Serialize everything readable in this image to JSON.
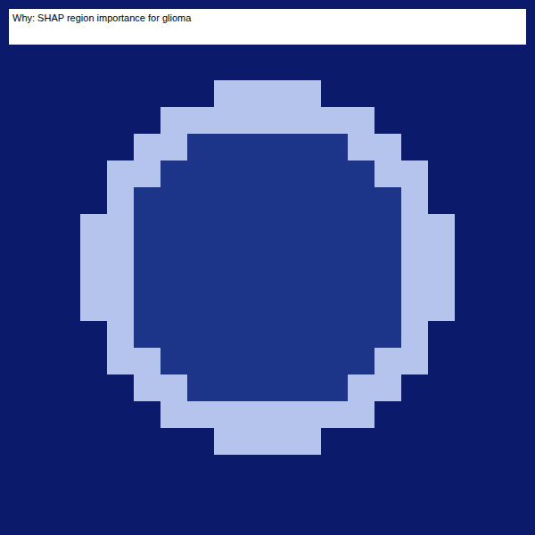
{
  "chart_data": {
    "type": "heatmap",
    "title": "Why: SHAP region importance for glioma",
    "tick_labels": false,
    "grid": false,
    "zlim": [
      0,
      10
    ],
    "cells": [
      [
        2,
        2,
        2,
        2,
        2,
        2,
        2,
        2,
        2,
        2,
        2,
        2,
        2,
        2,
        2,
        2,
        2,
        2,
        2,
        2
      ],
      [
        2,
        2,
        2,
        2,
        2,
        2,
        2,
        2,
        2,
        2,
        2,
        2,
        2,
        2,
        2,
        2,
        2,
        2,
        2,
        2
      ],
      [
        2,
        2,
        2,
        2,
        2,
        2,
        2,
        2,
        2,
        2,
        2,
        2,
        2,
        2,
        2,
        2,
        2,
        2,
        2,
        2
      ],
      [
        2,
        2,
        2,
        2,
        2,
        2,
        2,
        2,
        8,
        8,
        8,
        8,
        2,
        2,
        2,
        2,
        2,
        2,
        2,
        2
      ],
      [
        2,
        2,
        2,
        2,
        2,
        2,
        8,
        8,
        8,
        8,
        8,
        8,
        8,
        8,
        2,
        2,
        2,
        2,
        2,
        2
      ],
      [
        2,
        2,
        2,
        2,
        2,
        8,
        8,
        3,
        3,
        3,
        3,
        3,
        3,
        8,
        8,
        2,
        2,
        2,
        2,
        2
      ],
      [
        2,
        2,
        2,
        2,
        8,
        8,
        3,
        3,
        3,
        3,
        3,
        3,
        3,
        3,
        8,
        8,
        2,
        2,
        2,
        2
      ],
      [
        2,
        2,
        2,
        2,
        8,
        3,
        3,
        3,
        3,
        3,
        3,
        3,
        3,
        3,
        3,
        8,
        2,
        2,
        2,
        2
      ],
      [
        2,
        2,
        2,
        8,
        8,
        3,
        3,
        3,
        3,
        3,
        3,
        3,
        3,
        3,
        3,
        8,
        8,
        2,
        2,
        2
      ],
      [
        2,
        2,
        2,
        8,
        8,
        3,
        3,
        3,
        3,
        3,
        3,
        3,
        3,
        3,
        3,
        8,
        8,
        2,
        2,
        2
      ],
      [
        2,
        2,
        2,
        8,
        8,
        3,
        3,
        3,
        3,
        3,
        3,
        3,
        3,
        3,
        3,
        8,
        8,
        2,
        2,
        2
      ],
      [
        2,
        2,
        2,
        8,
        8,
        3,
        3,
        3,
        3,
        3,
        3,
        3,
        3,
        3,
        3,
        8,
        8,
        2,
        2,
        2
      ],
      [
        2,
        2,
        2,
        2,
        8,
        3,
        3,
        3,
        3,
        3,
        3,
        3,
        3,
        3,
        3,
        8,
        2,
        2,
        2,
        2
      ],
      [
        2,
        2,
        2,
        2,
        8,
        8,
        3,
        3,
        3,
        3,
        3,
        3,
        3,
        3,
        8,
        8,
        2,
        2,
        2,
        2
      ],
      [
        2,
        2,
        2,
        2,
        2,
        8,
        8,
        3,
        3,
        3,
        3,
        3,
        3,
        8,
        8,
        2,
        2,
        2,
        2,
        2
      ],
      [
        2,
        2,
        2,
        2,
        2,
        2,
        8,
        8,
        8,
        8,
        8,
        8,
        8,
        8,
        2,
        2,
        2,
        2,
        2,
        2
      ],
      [
        2,
        2,
        2,
        2,
        2,
        2,
        2,
        2,
        8,
        8,
        8,
        8,
        2,
        2,
        2,
        2,
        2,
        2,
        2,
        2
      ],
      [
        2,
        2,
        2,
        2,
        2,
        2,
        2,
        2,
        2,
        2,
        2,
        2,
        2,
        2,
        2,
        2,
        2,
        2,
        2,
        2
      ],
      [
        2,
        2,
        2,
        2,
        2,
        2,
        2,
        2,
        2,
        2,
        2,
        2,
        2,
        2,
        2,
        2,
        2,
        2,
        2,
        2
      ],
      [
        2,
        2,
        2,
        2,
        2,
        2,
        2,
        2,
        2,
        2,
        2,
        2,
        2,
        2,
        2,
        2,
        2,
        2,
        2,
        2
      ]
    ]
  }
}
